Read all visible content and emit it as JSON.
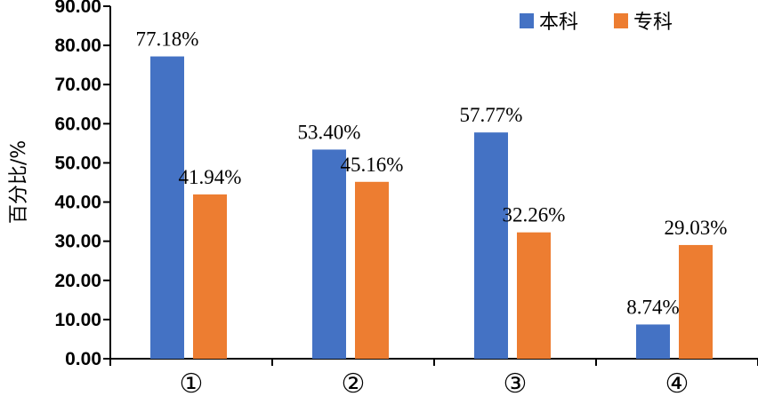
{
  "chart_data": {
    "type": "bar",
    "categories": [
      "①",
      "②",
      "③",
      "④"
    ],
    "series": [
      {
        "name": "本科",
        "color": "#4472c4",
        "values": [
          77.18,
          53.4,
          57.77,
          8.74
        ],
        "labels": [
          "77.18%",
          "53.40%",
          "57.77%",
          "8.74%"
        ]
      },
      {
        "name": "专科",
        "color": "#ed7d31",
        "values": [
          41.94,
          45.16,
          32.26,
          29.03
        ],
        "labels": [
          "41.94%",
          "45.16%",
          "32.26%",
          "29.03%"
        ]
      }
    ],
    "xlabel": "",
    "ylabel": "百分比/%",
    "ylim": [
      0,
      90
    ],
    "yticks": [
      "0.00",
      "10.00",
      "20.00",
      "30.00",
      "40.00",
      "50.00",
      "60.00",
      "70.00",
      "80.00",
      "90.00"
    ],
    "grid": false,
    "legend": "top-right"
  }
}
